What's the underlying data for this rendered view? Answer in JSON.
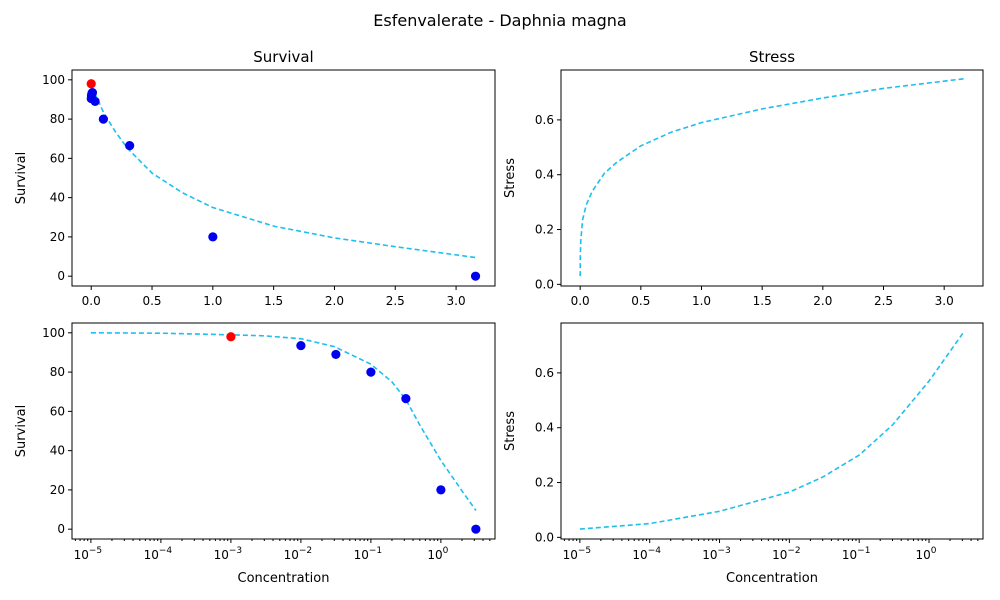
{
  "figure": {
    "suptitle": "Esfenvalerate - Daphnia magna"
  },
  "colors": {
    "curve": "#1ebff0",
    "points": "#0000ee",
    "control": "#ff0000"
  },
  "chart_data": [
    {
      "panel": "top-left",
      "type": "scatter",
      "title": "Survival",
      "xlabel": "",
      "ylabel": "Survival",
      "xscale": "linear",
      "xlim": [
        -0.158,
        3.32
      ],
      "ylim": [
        -5,
        105
      ],
      "xticks": [
        0,
        0.5,
        1,
        1.5,
        2,
        2.5,
        3
      ],
      "xtick_labels": [
        "0.0",
        "0.5",
        "1.0",
        "1.5",
        "2.0",
        "2.5",
        "3.0"
      ],
      "yticks": [
        0,
        20,
        40,
        60,
        80,
        100
      ],
      "ytick_labels": [
        "0",
        "20",
        "40",
        "60",
        "80",
        "100"
      ],
      "curve": {
        "style": "dashed",
        "x": [
          0,
          0.02,
          0.05,
          0.1,
          0.2,
          0.3,
          0.5,
          0.75,
          1.0,
          1.5,
          2.0,
          2.5,
          3.16
        ],
        "y": [
          97,
          94,
          90.5,
          83.5,
          73.5,
          65,
          52.5,
          42.5,
          35,
          25.5,
          19.5,
          15,
          9.5
        ]
      },
      "control_points": {
        "x": [
          0
        ],
        "y": [
          98
        ]
      },
      "points": {
        "x": [
          0.01,
          0.032,
          0.1,
          0.316,
          1.0,
          3.16
        ],
        "y": [
          93.5,
          89,
          80,
          66.5,
          20,
          0
        ]
      },
      "extra_points": {
        "x": [
          0,
          0.002,
          0.005
        ],
        "y": [
          90.5,
          92,
          93
        ]
      }
    },
    {
      "panel": "top-right",
      "type": "line",
      "title": "Stress",
      "xlabel": "",
      "ylabel": "Stress",
      "xscale": "linear",
      "xlim": [
        -0.158,
        3.32
      ],
      "ylim": [
        -0.006,
        0.782
      ],
      "xticks": [
        0,
        0.5,
        1,
        1.5,
        2,
        2.5,
        3
      ],
      "xtick_labels": [
        "0.0",
        "0.5",
        "1.0",
        "1.5",
        "2.0",
        "2.5",
        "3.0"
      ],
      "yticks": [
        0,
        0.2,
        0.4,
        0.6
      ],
      "ytick_labels": [
        "0.0",
        "0.2",
        "0.4",
        "0.6"
      ],
      "curve": {
        "style": "dashed",
        "x": [
          1e-05,
          0.001,
          0.005,
          0.02,
          0.05,
          0.1,
          0.2,
          0.3,
          0.5,
          0.75,
          1.0,
          1.5,
          2.0,
          2.5,
          3.16
        ],
        "y": [
          0.03,
          0.1,
          0.16,
          0.235,
          0.29,
          0.34,
          0.405,
          0.445,
          0.505,
          0.555,
          0.59,
          0.64,
          0.68,
          0.715,
          0.75
        ]
      }
    },
    {
      "panel": "bottom-left",
      "type": "scatter",
      "title": "",
      "xlabel": "Concentration",
      "ylabel": "Survival",
      "xscale": "log",
      "xlim": [
        -5.27,
        0.773
      ],
      "ylim": [
        -5,
        105
      ],
      "xticks": [
        -5,
        -4,
        -3,
        -2,
        -1,
        0
      ],
      "xtick_labels": [
        "−5",
        "−4",
        "−3",
        "−2",
        "−1",
        "0"
      ],
      "xtick_base": "10",
      "yticks": [
        0,
        20,
        40,
        60,
        80,
        100
      ],
      "ytick_labels": [
        "0",
        "20",
        "40",
        "60",
        "80",
        "100"
      ],
      "curve": {
        "style": "dashed",
        "x": [
          1e-05,
          0.0001,
          0.001,
          0.003,
          0.01,
          0.03,
          0.1,
          0.2,
          0.316,
          0.5,
          1.0,
          2.0,
          3.16
        ],
        "y": [
          100,
          99.8,
          99,
          98.5,
          97,
          93,
          84,
          75,
          66,
          53,
          35,
          19.5,
          9.5
        ]
      },
      "control_points": {
        "x": [
          0.001
        ],
        "y": [
          98
        ]
      },
      "points": {
        "x": [
          0.01,
          0.0316,
          0.1,
          0.316,
          1.0,
          3.16
        ],
        "y": [
          93.5,
          89,
          80,
          66.5,
          20,
          0
        ]
      }
    },
    {
      "panel": "bottom-right",
      "type": "line",
      "title": "",
      "xlabel": "Concentration",
      "ylabel": "Stress",
      "xscale": "log",
      "xlim": [
        -5.27,
        0.773
      ],
      "ylim": [
        -0.006,
        0.782
      ],
      "xticks": [
        -5,
        -4,
        -3,
        -2,
        -1,
        0
      ],
      "xtick_labels": [
        "−5",
        "−4",
        "−3",
        "−2",
        "−1",
        "0"
      ],
      "xtick_base": "10",
      "yticks": [
        0,
        0.2,
        0.4,
        0.6
      ],
      "ytick_labels": [
        "0.0",
        "0.2",
        "0.4",
        "0.6"
      ],
      "curve": {
        "style": "dashed",
        "x": [
          1e-05,
          0.0001,
          0.001,
          0.01,
          0.03,
          0.1,
          0.3,
          1.0,
          3.16
        ],
        "y": [
          0.03,
          0.05,
          0.095,
          0.165,
          0.22,
          0.3,
          0.41,
          0.57,
          0.75
        ]
      }
    }
  ]
}
